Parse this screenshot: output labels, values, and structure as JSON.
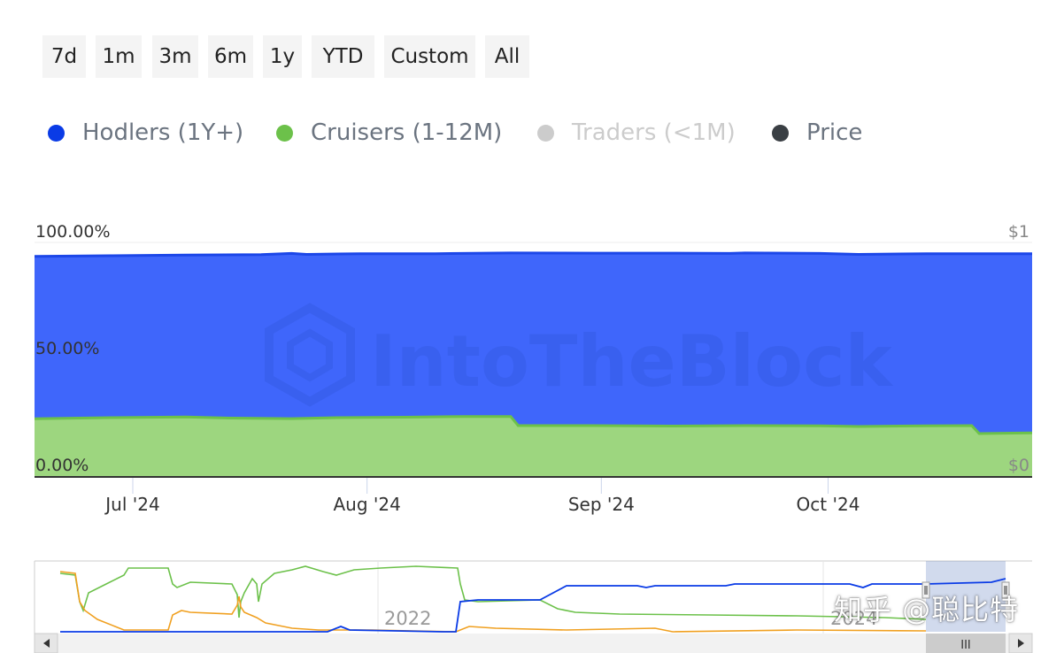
{
  "range_buttons": [
    "7d",
    "1m",
    "3m",
    "6m",
    "1y",
    "YTD",
    "Custom",
    "All"
  ],
  "legend": [
    {
      "label": "Hodlers (1Y+)",
      "color": "#0a3be6",
      "text_color": "#6b7480",
      "enabled": true
    },
    {
      "label": "Cruisers (1-12M)",
      "color": "#6cc14a",
      "text_color": "#6b7480",
      "enabled": true
    },
    {
      "label": "Traders (<1M)",
      "color": "#cccccc",
      "text_color": "#cccccc",
      "enabled": false
    },
    {
      "label": "Price",
      "color": "#3a3f44",
      "text_color": "#6b7480",
      "enabled": true
    }
  ],
  "chart_data": {
    "type": "area",
    "x_ticks": [
      "Jul '24",
      "Aug '24",
      "Sep '24",
      "Oct '24"
    ],
    "y_ticks_left": [
      "100.00%",
      "50.00%",
      "0.00%"
    ],
    "y_ticks_right": [
      "$1",
      "$0"
    ],
    "ylim": [
      0,
      100
    ],
    "date_range": [
      "2024-06-18",
      "2024-10-28"
    ],
    "series": [
      {
        "name": "Cruisers (1-12M)",
        "color": "#9dd67f",
        "line_color": "#6cc14a",
        "points": [
          [
            "2024-06-18",
            24.5
          ],
          [
            "2024-06-28",
            25.0
          ],
          [
            "2024-07-08",
            25.3
          ],
          [
            "2024-07-14",
            24.8
          ],
          [
            "2024-07-22",
            24.6
          ],
          [
            "2024-07-28",
            25.0
          ],
          [
            "2024-08-06",
            25.2
          ],
          [
            "2024-08-14",
            25.5
          ],
          [
            "2024-08-20",
            25.5
          ],
          [
            "2024-08-21",
            21.6
          ],
          [
            "2024-08-31",
            21.6
          ],
          [
            "2024-09-10",
            21.4
          ],
          [
            "2024-09-20",
            21.6
          ],
          [
            "2024-09-30",
            21.5
          ],
          [
            "2024-10-05",
            21.2
          ],
          [
            "2024-10-14",
            21.5
          ],
          [
            "2024-10-20",
            21.6
          ],
          [
            "2024-10-21",
            18.2
          ],
          [
            "2024-10-28",
            18.5
          ]
        ]
      },
      {
        "name": "Hodlers (1Y+)",
        "color": "#3f66fb",
        "line_color": "#1c47e8",
        "points": [
          [
            "2024-06-18",
            94.0
          ],
          [
            "2024-06-28",
            94.3
          ],
          [
            "2024-07-08",
            94.6
          ],
          [
            "2024-07-18",
            94.8
          ],
          [
            "2024-07-22",
            95.3
          ],
          [
            "2024-07-24",
            94.9
          ],
          [
            "2024-07-31",
            95.2
          ],
          [
            "2024-08-10",
            95.2
          ],
          [
            "2024-08-20",
            95.5
          ],
          [
            "2024-08-31",
            95.4
          ],
          [
            "2024-09-10",
            95.4
          ],
          [
            "2024-09-18",
            95.3
          ],
          [
            "2024-09-20",
            95.5
          ],
          [
            "2024-09-30",
            95.3
          ],
          [
            "2024-10-05",
            94.9
          ],
          [
            "2024-10-14",
            95.2
          ],
          [
            "2024-10-28",
            95.2
          ]
        ]
      }
    ]
  },
  "navigator": {
    "label_2022": "2022",
    "label_2024": "2024",
    "scroll_thumb_glyph": "III",
    "colors": {
      "hodlers": "#0a3be6",
      "cruisers": "#6cc14a",
      "traders": "#f0a020"
    }
  },
  "watermark": {
    "brand": "IntoTheBlock",
    "zhihu": "知乎 @聪比特"
  }
}
